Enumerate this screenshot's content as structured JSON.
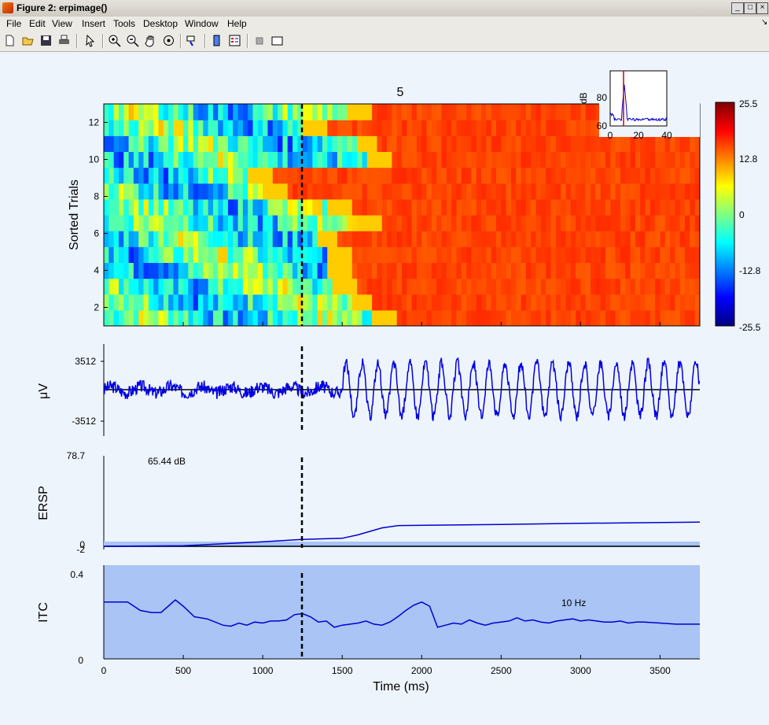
{
  "window": {
    "title": "Figure 2:  erpimage()"
  },
  "menu": [
    "File",
    "Edit",
    "View",
    "Insert",
    "Tools",
    "Desktop",
    "Window",
    "Help"
  ],
  "toolbar": [
    "new-figure",
    "open-file",
    "save",
    "print",
    "pointer",
    "zoom-in",
    "zoom-out",
    "pan",
    "rotate",
    "data-cursor",
    "insert-colorbar",
    "insert-legend",
    "hide-plot-tools",
    "show-plot-tools"
  ],
  "chart_data": [
    {
      "type": "heatmap",
      "title": "5",
      "ylabel": "Sorted Trials",
      "xlim": [
        0,
        3750
      ],
      "ylim": [
        1,
        13
      ],
      "yticks": [
        2,
        4,
        6,
        8,
        10,
        12
      ],
      "event_line_x": 1250,
      "rows_transition_ms": [
        1850,
        1700,
        1600,
        1550,
        1570,
        1480,
        1750,
        1570,
        1150,
        1050,
        1800,
        1730,
        1400,
        1680
      ],
      "colorbar": {
        "min": -25.5,
        "max": 25.5,
        "ticks": [
          "25.5",
          "12.8",
          "0",
          "-12.8",
          "-25.5"
        ]
      },
      "inset": {
        "ylabel": "dB",
        "xticks": [
          "0",
          "20",
          "40"
        ],
        "yticks": [
          "60",
          "80"
        ],
        "peak_x": 10
      }
    },
    {
      "type": "line",
      "ylabel": "μV",
      "yticks": [
        "3512",
        "-3512"
      ],
      "ylim": [
        -5000,
        5000
      ],
      "event_line_x": 1250,
      "oscillation_freq_hz": 10,
      "oscillation_start_ms": 1500
    },
    {
      "type": "line",
      "ylabel": "ERSP",
      "yticks": [
        "78.7",
        "0",
        "-2"
      ],
      "ylim": [
        -2,
        78.7
      ],
      "annotation": "65.44 dB",
      "event_line_x": 1250,
      "x": [
        0,
        500,
        1000,
        1250,
        1500,
        1600,
        1750,
        1850,
        2500,
        3000,
        3750
      ],
      "y": [
        0,
        0.5,
        4,
        6,
        7,
        10,
        16,
        18,
        19,
        20,
        21
      ]
    },
    {
      "type": "line",
      "ylabel": "ITC",
      "xlabel": "Time (ms)",
      "yticks": [
        "0.4",
        "0"
      ],
      "ylim": [
        0,
        0.4
      ],
      "annotation": "10 Hz",
      "event_line_x": 1250,
      "xticks": [
        "0",
        "500",
        "1000",
        "1500",
        "2000",
        "2500",
        "3000",
        "3500"
      ],
      "x": [
        0,
        150,
        230,
        300,
        360,
        420,
        450,
        500,
        570,
        650,
        750,
        800,
        850,
        900,
        950,
        1000,
        1050,
        1100,
        1150,
        1200,
        1250,
        1300,
        1350,
        1400,
        1450,
        1500,
        1550,
        1600,
        1650,
        1700,
        1750,
        1800,
        1850,
        1900,
        1950,
        2000,
        2050,
        2100,
        2150,
        2200,
        2250,
        2300,
        2350,
        2400,
        2450,
        2500,
        2550,
        2600,
        2650,
        2700,
        2750,
        2800,
        2850,
        2900,
        2950,
        3000,
        3050,
        3100,
        3150,
        3200,
        3250,
        3300,
        3350,
        3400,
        3500,
        3600,
        3750
      ],
      "y": [
        0.27,
        0.27,
        0.23,
        0.22,
        0.22,
        0.26,
        0.28,
        0.25,
        0.2,
        0.19,
        0.16,
        0.155,
        0.17,
        0.16,
        0.175,
        0.17,
        0.18,
        0.18,
        0.185,
        0.21,
        0.215,
        0.2,
        0.175,
        0.18,
        0.15,
        0.16,
        0.165,
        0.17,
        0.18,
        0.165,
        0.16,
        0.175,
        0.2,
        0.23,
        0.255,
        0.27,
        0.25,
        0.15,
        0.16,
        0.17,
        0.165,
        0.185,
        0.17,
        0.16,
        0.17,
        0.175,
        0.18,
        0.195,
        0.18,
        0.185,
        0.175,
        0.17,
        0.18,
        0.185,
        0.19,
        0.18,
        0.185,
        0.18,
        0.175,
        0.175,
        0.18,
        0.17,
        0.175,
        0.175,
        0.17,
        0.165,
        0.165
      ]
    }
  ]
}
